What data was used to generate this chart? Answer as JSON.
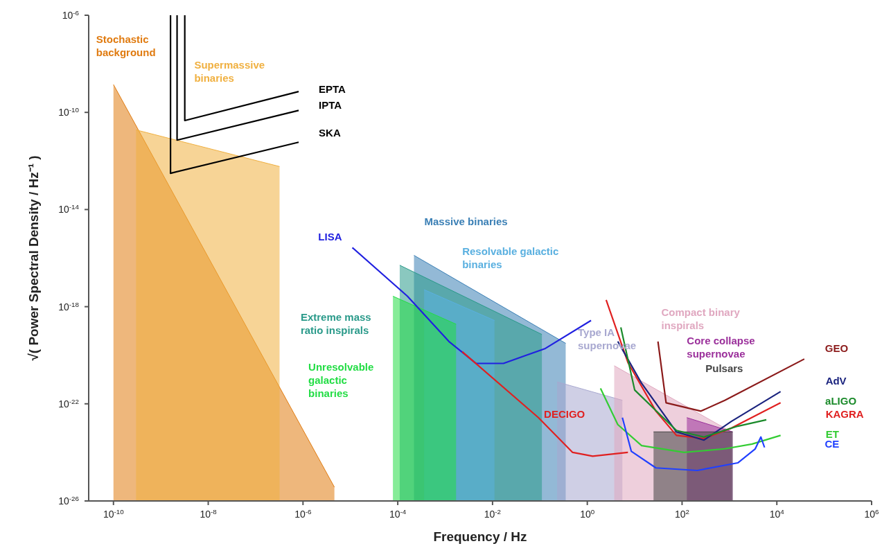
{
  "chart_data": {
    "type": "line",
    "xlabel": "Frequency / Hz",
    "ylabel": "√( Power Spectral Density / Hz⁻¹ )",
    "log": "xy",
    "grid": false,
    "legend": false,
    "xlim": [
      3e-11,
      1000000.0
    ],
    "ylim": [
      1e-26,
      1e-06
    ],
    "xticks": [
      {
        "value": 1e-10,
        "label": "10$^{-10}$"
      },
      {
        "value": 1e-08,
        "label": "10$^{-8}$"
      },
      {
        "value": 1e-06,
        "label": "10$^{-6}$"
      },
      {
        "value": 0.0001,
        "label": "10$^{-4}$"
      },
      {
        "value": 0.01,
        "label": "10$^{-2}$"
      },
      {
        "value": 1,
        "label": "10$^{0}$"
      },
      {
        "value": 100,
        "label": "10$^{2}$"
      },
      {
        "value": 10000,
        "label": "10$^{4}$"
      },
      {
        "value": 1000000,
        "label": "10$^{6}$"
      }
    ],
    "yticks": [
      {
        "value": 1e-06,
        "label": "10$^{-6}$"
      },
      {
        "value": 1e-10,
        "label": "10$^{-10}$"
      },
      {
        "value": 1e-14,
        "label": "10$^{-14}$"
      },
      {
        "value": 1e-18,
        "label": "10$^{-18}$"
      },
      {
        "value": 1e-22,
        "label": "10$^{-22}$"
      },
      {
        "value": 1e-26,
        "label": "10$^{-26}$"
      }
    ],
    "series": [
      {
        "name": "Stochastic background",
        "type": "area",
        "color": "#e07b10",
        "x": [
          1e-10,
          4.6e-06
        ],
        "values": [
          1.4e-09,
          3.7e-26
        ]
      },
      {
        "name": "Supermassive binaries",
        "type": "area",
        "color": "#f0b040",
        "x": [
          3e-10,
          3.2e-07
        ],
        "values": [
          1.9e-11,
          5.9e-13
        ]
      },
      {
        "name": "Massive binaries",
        "type": "area",
        "color": "#3a7fb5",
        "x": [
          0.00022,
          0.35
        ],
        "values": [
          1.3e-16,
          3.1e-20
        ]
      },
      {
        "name": "Extreme mass ratio inspirals",
        "type": "area",
        "color": "#2a9a8a",
        "x": [
          0.00011,
          0.11
        ],
        "values": [
          5.1e-17,
          7.2e-20
        ]
      },
      {
        "name": "Resolvable galactic binaries",
        "type": "area",
        "color": "#5ab0e0",
        "x": [
          0.00036,
          0.011
        ],
        "values": [
          5e-18,
          2.7e-19
        ]
      },
      {
        "name": "Unresolvable galactic binaries",
        "type": "area",
        "color": "#22dd44",
        "x": [
          7.9e-05,
          0.0017
        ],
        "values": [
          2.7e-18,
          1.9e-19
        ]
      },
      {
        "name": "Type IA supernovae",
        "type": "area",
        "color": "#a8a8d0",
        "x": [
          0.23,
          5.5
        ],
        "values": [
          8e-22,
          1.4e-22
        ]
      },
      {
        "name": "Compact binary inspirals",
        "type": "area",
        "color": "#e0a8c0",
        "x": [
          3.7,
          1100
        ],
        "values": [
          3.7e-21,
          7e-24
        ]
      },
      {
        "name": "Core collapse supernovae",
        "type": "area",
        "color": "#9b309b",
        "x": [
          126,
          1170
        ],
        "values": [
          2.7e-23,
          7e-24
        ]
      },
      {
        "name": "Pulsars",
        "type": "area",
        "color": "#444444",
        "x": [
          25,
          1170
        ],
        "values": [
          7e-24,
          7e-24
        ]
      },
      {
        "name": "LISA",
        "type": "line",
        "color": "#2020e0",
        "x": [
          1.1e-05,
          0.00016,
          0.0012,
          0.0045,
          0.017,
          0.13,
          1.2
        ],
        "values": [
          2.7e-16,
          2.7e-18,
          3.7e-20,
          4.6e-21,
          4.6e-21,
          1.9e-20,
          2.7e-19
        ]
      },
      {
        "name": "DECIGO",
        "type": "line",
        "color": "#e02020",
        "x": [
          0.0023,
          0.093,
          0.49,
          1.3,
          7.2
        ],
        "values": [
          1.4e-20,
          2.7e-23,
          1e-24,
          7e-25,
          1e-24
        ]
      },
      {
        "name": "KAGRA",
        "type": "line",
        "color": "#e02020",
        "x": [
          2.5,
          7.2,
          28,
          76,
          290,
          1100,
          12000
        ],
        "values": [
          1.9e-18,
          5e-21,
          5e-23,
          5e-24,
          3.7e-24,
          1e-23,
          1.1e-22
        ]
      },
      {
        "name": "GEO",
        "type": "line",
        "color": "#8b1a1a",
        "x": [
          31,
          46,
          250,
          800,
          38000
        ],
        "values": [
          3.7e-20,
          1.1e-22,
          5e-23,
          1.4e-22,
          7e-21
        ]
      },
      {
        "name": "AdV",
        "type": "line",
        "color": "#1a237e",
        "x": [
          4.4,
          14,
          76,
          290,
          1100,
          12000
        ],
        "values": [
          3.7e-20,
          7e-22,
          7e-24,
          3.2e-24,
          1.9e-23,
          3.2e-22
        ]
      },
      {
        "name": "aLIGO",
        "type": "line",
        "color": "#1a8a2a",
        "x": [
          5.1,
          10,
          76,
          290,
          1500,
          6000
        ],
        "values": [
          1.4e-19,
          3.7e-22,
          8e-24,
          4.3e-24,
          1.2e-23,
          2.2e-23
        ]
      },
      {
        "name": "ET",
        "type": "line",
        "color": "#33cc33",
        "x": [
          1.9,
          4.4,
          14,
          110,
          800,
          3000,
          12000
        ],
        "values": [
          4.3e-22,
          1.4e-23,
          1.9e-24,
          1e-24,
          1.4e-24,
          2.2e-24,
          5e-24
        ]
      },
      {
        "name": "CE",
        "type": "line",
        "color": "#2040ff",
        "x": [
          5.5,
          8.5,
          28,
          210,
          1500,
          3500,
          4600,
          5500
        ],
        "values": [
          2.7e-23,
          1.1e-24,
          2.3e-25,
          1.8e-25,
          3.7e-25,
          1.4e-24,
          4.3e-24,
          1.6e-24
        ]
      },
      {
        "name": "EPTA",
        "type": "line",
        "color": "#000000",
        "x": [
          3.2e-09,
          3.2e-09,
          8.1e-07
        ],
        "values": [
          1e-06,
          4.6e-11,
          7.2e-10
        ]
      },
      {
        "name": "IPTA",
        "type": "line",
        "color": "#000000",
        "x": [
          2.2e-09,
          2.2e-09,
          8.1e-07
        ],
        "values": [
          1e-06,
          7.2e-12,
          1.2e-10
        ]
      },
      {
        "name": "SKA",
        "type": "line",
        "color": "#000000",
        "x": [
          1.6e-09,
          1.6e-09,
          8.1e-07
        ],
        "values": [
          1e-06,
          3.1e-13,
          5.9e-12
        ]
      }
    ]
  }
}
